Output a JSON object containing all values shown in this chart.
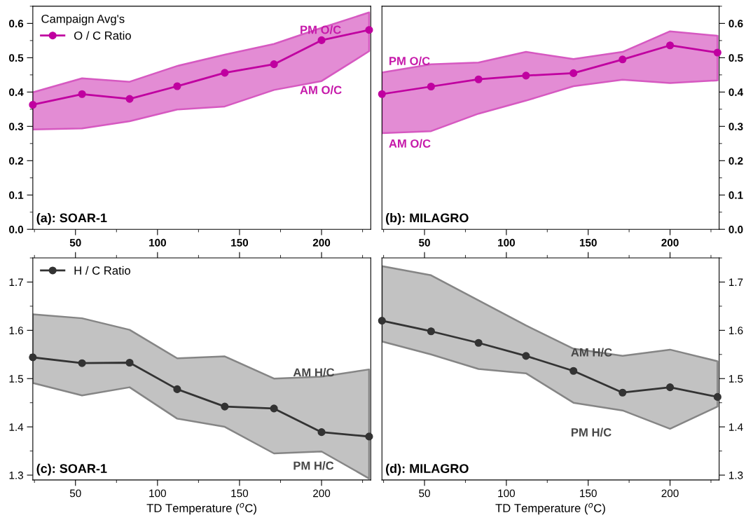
{
  "chart_data": [
    {
      "type": "line",
      "title": "(a): SOAR-1",
      "legend_title": "Campaign Avg's",
      "legend": "top left",
      "marker": "circle",
      "line_style": "solid",
      "x": [
        24,
        54,
        83,
        112,
        141,
        171,
        200,
        229
      ],
      "xlim": [
        24,
        230
      ],
      "xticks": [
        50,
        100,
        150,
        200
      ],
      "ylim": [
        0,
        0.65
      ],
      "yticks": [
        {
          "value": 0,
          "label": "0.0"
        },
        0.1,
        0.2,
        0.3,
        0.4,
        0.5,
        0.6
      ],
      "series": [
        {
          "name": "O / C Ratio",
          "color": "#c000a0",
          "values": [
            0.363,
            0.394,
            0.38,
            0.417,
            0.456,
            0.481,
            0.551,
            0.581
          ],
          "upper": [
            0.399,
            0.44,
            0.43,
            0.476,
            0.509,
            0.54,
            0.587,
            0.632
          ],
          "lower": [
            0.291,
            0.294,
            0.315,
            0.349,
            0.358,
            0.406,
            0.432,
            0.519
          ]
        }
      ],
      "annotations": [
        "PM O/C",
        "AM O/C"
      ]
    },
    {
      "type": "line",
      "title": "(b): MILAGRO",
      "marker": "circle",
      "line_style": "solid",
      "x": [
        24,
        54,
        83,
        112,
        141,
        171,
        200,
        229
      ],
      "xlim": [
        24,
        230
      ],
      "xticks": [
        50,
        100,
        150,
        200
      ],
      "y2lim": [
        0,
        0.65
      ],
      "y2ticks": [
        {
          "value": 0,
          "label": "0.0"
        },
        0.1,
        0.2,
        0.3,
        0.4,
        0.5,
        0.6
      ],
      "series": [
        {
          "axis": "y2",
          "color": "#c000a0",
          "values": [
            0.394,
            0.416,
            0.437,
            0.448,
            0.455,
            0.495,
            0.536,
            0.515
          ],
          "upper": [
            0.457,
            0.481,
            0.486,
            0.517,
            0.496,
            0.517,
            0.577,
            0.564
          ],
          "lower": [
            0.28,
            0.286,
            0.337,
            0.375,
            0.417,
            0.436,
            0.426,
            0.434
          ]
        }
      ],
      "annotations": [
        "PM O/C",
        "AM O/C"
      ]
    },
    {
      "type": "line",
      "title": "(c): SOAR-1",
      "xlabel": "TD Temperature ($^{o}$C)",
      "legend": "top left",
      "marker": "circle",
      "line_style": "solid",
      "x": [
        24,
        54,
        83,
        112,
        141,
        171,
        200,
        229
      ],
      "xlim": [
        24,
        230
      ],
      "xticks": [
        50,
        100,
        150,
        200
      ],
      "ylim": [
        1.29,
        1.75
      ],
      "yticks": [
        1.3,
        1.4,
        1.5,
        1.6,
        1.7
      ],
      "series": [
        {
          "name": "H / C Ratio",
          "color": "#333333",
          "values": [
            1.544,
            1.532,
            1.533,
            1.478,
            1.442,
            1.438,
            1.389,
            1.38
          ],
          "upper": [
            1.633,
            1.625,
            1.601,
            1.542,
            1.546,
            1.5,
            1.504,
            1.519
          ],
          "lower": [
            1.491,
            1.465,
            1.482,
            1.417,
            1.4,
            1.345,
            1.349,
            1.293
          ]
        }
      ],
      "annotations": [
        "AM H/C",
        "PM H/C"
      ]
    },
    {
      "type": "line",
      "title": "(d): MILAGRO",
      "xlabel": "TD Temperature ($^{o}$C)",
      "marker": "circle",
      "line_style": "solid",
      "x": [
        24,
        54,
        83,
        112,
        141,
        171,
        200,
        229
      ],
      "xlim": [
        24,
        230
      ],
      "xticks": [
        50,
        100,
        150,
        200
      ],
      "y2lim": [
        1.29,
        1.75
      ],
      "y2ticks": [
        1.3,
        1.4,
        1.5,
        1.6,
        1.7
      ],
      "series": [
        {
          "axis": "y2",
          "color": "#333333",
          "values": [
            1.62,
            1.598,
            1.574,
            1.547,
            1.516,
            1.471,
            1.482,
            1.462
          ],
          "upper": [
            1.733,
            1.714,
            1.662,
            1.61,
            1.562,
            1.547,
            1.56,
            1.536
          ],
          "lower": [
            1.577,
            1.55,
            1.52,
            1.511,
            1.45,
            1.434,
            1.396,
            1.442
          ]
        }
      ],
      "annotations": [
        "AM H/C",
        "PM H/C"
      ]
    }
  ]
}
